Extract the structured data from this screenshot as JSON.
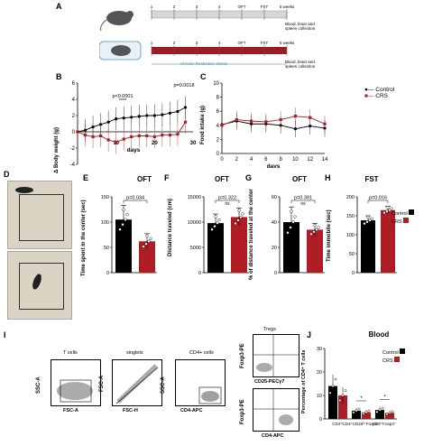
{
  "panels": {
    "A": {
      "label": "A",
      "ticks": [
        "1",
        "2",
        "3",
        "4",
        "OFT",
        "FST",
        "5 weeks"
      ],
      "note_top": "Blood, brain and spleen collection",
      "note_bottom": "Blood, brain and spleen collection",
      "bar_label": "Chronic Restriction Stress"
    },
    "B": {
      "label": "B",
      "ylabel": "Δ Body weight (g)",
      "xlabel": "days",
      "p1": "p<0.0001",
      "stars1": "****",
      "p2": "p=0.0018"
    },
    "C": {
      "label": "C",
      "ylabel": "Food intake (g)",
      "xlabel": "days"
    },
    "D": {
      "label": "D"
    },
    "E": {
      "label": "E",
      "title": "OFT",
      "ylabel": "Time spent in the center (sec)",
      "p": "p=0.034"
    },
    "F": {
      "label": "F",
      "title": "OFT",
      "ylabel": "Distance traveled (cm)",
      "p": "p=0.322",
      "ns": "ns"
    },
    "G": {
      "label": "G",
      "title": "OFT",
      "ylabel": "% of distance traveled at the center",
      "p": "p=0.391",
      "ns": "ns"
    },
    "H": {
      "label": "H",
      "title": "FST",
      "ylabel": "Time immobile (sec)",
      "p": "p=0.016"
    },
    "I": {
      "label": "I",
      "gates": [
        "T cells",
        "singlets",
        "CD4+ cells",
        "Tregs"
      ],
      "axes": {
        "g1y": "SSC-A",
        "g1x": "FSC-A",
        "g2y": "FSC-A",
        "g2x": "FSC-H",
        "g3y": "SSC-A",
        "g3x": "CD4-APC",
        "g4y": "Foxp3-PE",
        "g4x": "CD25-PECγ7",
        "g5y": "Foxp3-PE",
        "g5x": "CD4-APC"
      }
    },
    "J": {
      "label": "J",
      "title": "Blood",
      "ylabel": "Percentage of CD4⁺ T cells",
      "xcats": [
        "CD4⁺",
        "CD4⁺CD25ʰⁱ Foxp3⁺",
        "CD4⁺Foxp3⁺"
      ],
      "sig": "*"
    }
  },
  "legend": {
    "control": "Control",
    "crs": "CRS"
  },
  "colors": {
    "control": "#000000",
    "crs": "#b01c24"
  },
  "chart_data": [
    {
      "id": "B",
      "type": "line",
      "xlabel": "days",
      "ylabel": "Δ Body weight (g)",
      "ylim": [
        -4,
        6
      ],
      "x": [
        0,
        2,
        4,
        6,
        8,
        10,
        12,
        14,
        16,
        18,
        20,
        22,
        24,
        26,
        28
      ],
      "series": [
        {
          "name": "Control",
          "values": [
            0,
            0.2,
            0.6,
            0.9,
            1.2,
            1.6,
            1.7,
            1.8,
            1.9,
            2.0,
            2.0,
            2.1,
            2.3,
            2.5,
            3.0
          ]
        },
        {
          "name": "CRS",
          "values": [
            0,
            -0.4,
            -0.6,
            -0.5,
            -1.0,
            -1.3,
            -0.9,
            -0.6,
            -0.5,
            -0.5,
            -0.6,
            -0.4,
            -0.4,
            -0.3,
            1.2
          ]
        }
      ],
      "yticks": [
        "-4",
        "-2",
        "0",
        "2",
        "4",
        "6"
      ],
      "xticks": [
        "10",
        "20",
        "30"
      ]
    },
    {
      "id": "C",
      "type": "line",
      "xlabel": "days",
      "ylabel": "Food intake (g)",
      "ylim": [
        0,
        10
      ],
      "x": [
        0,
        2,
        4,
        6,
        8,
        10,
        12,
        14
      ],
      "series": [
        {
          "name": "Control",
          "values": [
            4.1,
            4.6,
            4.2,
            4.2,
            4.0,
            3.5,
            3.9,
            3.6
          ]
        },
        {
          "name": "CRS",
          "values": [
            4.0,
            4.8,
            4.6,
            4.5,
            4.8,
            5.3,
            5.1,
            4.2
          ]
        }
      ],
      "yticks": [
        "0",
        "2",
        "4",
        "6",
        "8",
        "10"
      ],
      "xticks": [
        "0",
        "2",
        "4",
        "6",
        "8",
        "10",
        "12",
        "14"
      ]
    },
    {
      "id": "E",
      "type": "bar",
      "ylim": [
        0,
        150
      ],
      "categories": [
        "Control",
        "CRS"
      ],
      "values": [
        105,
        62
      ],
      "err": [
        28,
        15
      ],
      "yticks": [
        "0",
        "50",
        "100",
        "150"
      ]
    },
    {
      "id": "F",
      "type": "bar",
      "ylim": [
        0,
        15000
      ],
      "categories": [
        "Control",
        "CRS"
      ],
      "values": [
        9800,
        11000
      ],
      "err": [
        1800,
        1800
      ],
      "yticks": [
        "0",
        "5000",
        "10000",
        "15000"
      ]
    },
    {
      "id": "G",
      "type": "bar",
      "ylim": [
        0,
        60
      ],
      "categories": [
        "Control",
        "CRS"
      ],
      "values": [
        40,
        34
      ],
      "err": [
        12,
        5
      ],
      "yticks": [
        "0",
        "20",
        "40",
        "60"
      ]
    },
    {
      "id": "H",
      "type": "bar",
      "ylim": [
        0,
        200
      ],
      "categories": [
        "Control",
        "CRS"
      ],
      "values": [
        138,
        165
      ],
      "err": [
        12,
        10
      ],
      "yticks": [
        "0",
        "50",
        "100",
        "150",
        "200"
      ]
    },
    {
      "id": "J",
      "type": "bar",
      "ylim": [
        0,
        30
      ],
      "categories": [
        "CD4⁺",
        "CD4⁺CD25ʰⁱ Foxp3⁺",
        "CD4⁺Foxp3⁺"
      ],
      "series": [
        {
          "name": "Control",
          "values": [
            14,
            3.5,
            3.8
          ]
        },
        {
          "name": "CRS",
          "values": [
            10,
            2.8,
            2.6
          ]
        }
      ],
      "yticks": [
        "0",
        "10",
        "20",
        "30"
      ]
    }
  ]
}
